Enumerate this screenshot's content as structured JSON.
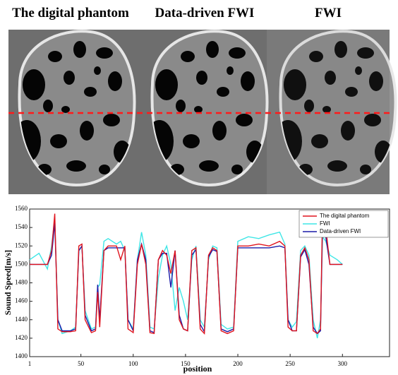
{
  "panels": [
    {
      "title": "The digital phantom"
    },
    {
      "title": "Data-driven FWI"
    },
    {
      "title": "FWI"
    }
  ],
  "chart_data": {
    "type": "line",
    "xlabel": "position",
    "ylabel": "Sound Speed[m/s]",
    "xlim": [
      1,
      345
    ],
    "ylim": [
      1400,
      1560
    ],
    "xticks": [
      1,
      50,
      100,
      150,
      200,
      250,
      300
    ],
    "yticks": [
      1400,
      1420,
      1440,
      1460,
      1480,
      1500,
      1520,
      1540,
      1560
    ],
    "legend": "upper right",
    "x": [
      1,
      10,
      18,
      22,
      25,
      28,
      32,
      40,
      45,
      48,
      51,
      54,
      60,
      64,
      66,
      68,
      72,
      76,
      84,
      88,
      92,
      95,
      100,
      104,
      108,
      112,
      116,
      120,
      124,
      128,
      132,
      136,
      140,
      144,
      148,
      152,
      156,
      160,
      164,
      168,
      172,
      176,
      180,
      184,
      190,
      196,
      200,
      210,
      220,
      230,
      240,
      245,
      248,
      252,
      256,
      260,
      264,
      268,
      272,
      276,
      279,
      281,
      284,
      288,
      295,
      300
    ],
    "series": [
      {
        "name": "The digital phantom",
        "color": "#e0141e",
        "values": [
          1500,
          1500,
          1500,
          1515,
          1555,
          1430,
          1427,
          1427,
          1428,
          1520,
          1522,
          1440,
          1426,
          1428,
          1470,
          1432,
          1515,
          1520,
          1520,
          1505,
          1520,
          1430,
          1426,
          1500,
          1522,
          1500,
          1426,
          1425,
          1505,
          1515,
          1510,
          1490,
          1515,
          1440,
          1430,
          1428,
          1515,
          1518,
          1430,
          1425,
          1510,
          1518,
          1515,
          1428,
          1425,
          1428,
          1520,
          1520,
          1522,
          1520,
          1525,
          1520,
          1432,
          1428,
          1428,
          1510,
          1518,
          1505,
          1428,
          1425,
          1430,
          1558,
          1540,
          1500,
          1500,
          1500
        ]
      },
      {
        "name": "FWI",
        "color": "#3fe6e6",
        "values": [
          1505,
          1512,
          1495,
          1520,
          1550,
          1440,
          1425,
          1428,
          1432,
          1515,
          1520,
          1450,
          1430,
          1432,
          1475,
          1478,
          1525,
          1528,
          1522,
          1525,
          1515,
          1440,
          1430,
          1505,
          1535,
          1510,
          1432,
          1430,
          1485,
          1510,
          1520,
          1500,
          1450,
          1475,
          1460,
          1440,
          1505,
          1520,
          1440,
          1432,
          1505,
          1520,
          1518,
          1435,
          1430,
          1432,
          1525,
          1530,
          1528,
          1532,
          1535,
          1522,
          1440,
          1432,
          1438,
          1515,
          1520,
          1510,
          1440,
          1420,
          1440,
          1530,
          1525,
          1510,
          1505,
          1500
        ]
      },
      {
        "name": "Data-driven FWI",
        "color": "#1a1aa8",
        "values": [
          1500,
          1500,
          1500,
          1510,
          1545,
          1440,
          1428,
          1428,
          1430,
          1515,
          1520,
          1445,
          1428,
          1430,
          1478,
          1440,
          1515,
          1518,
          1518,
          1518,
          1518,
          1440,
          1428,
          1505,
          1522,
          1505,
          1428,
          1426,
          1505,
          1512,
          1512,
          1475,
          1515,
          1445,
          1430,
          1428,
          1510,
          1516,
          1435,
          1427,
          1508,
          1516,
          1514,
          1430,
          1427,
          1430,
          1518,
          1518,
          1518,
          1518,
          1520,
          1518,
          1440,
          1428,
          1428,
          1508,
          1516,
          1500,
          1432,
          1425,
          1428,
          1545,
          1530,
          1500,
          1500,
          1500
        ]
      }
    ]
  }
}
